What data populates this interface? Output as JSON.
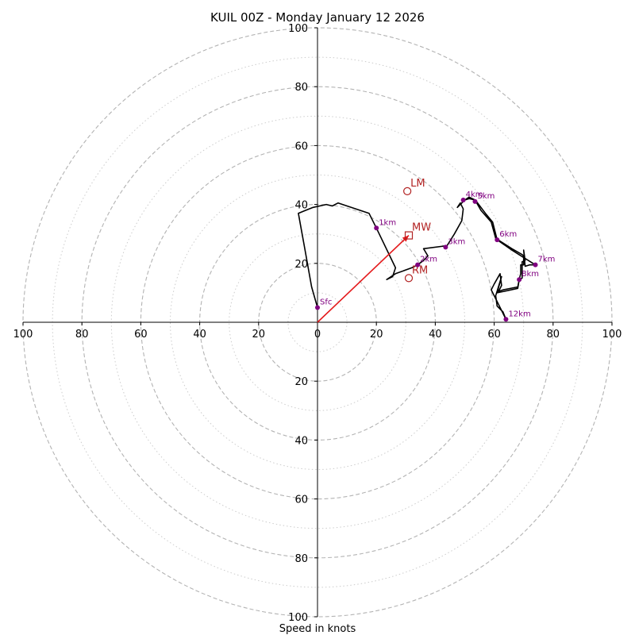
{
  "chart_data": {
    "type": "hodograph",
    "title": "KUIL 00Z - Monday January 12 2026",
    "xlabel": "Speed in knots",
    "units": "knots",
    "range": [
      -100,
      100
    ],
    "ring_ticks": [
      100,
      80,
      60,
      40,
      20,
      0,
      20,
      40,
      60,
      80,
      100
    ],
    "rings_major": [
      20,
      40,
      60,
      80,
      100
    ],
    "rings_minor": [
      10,
      30,
      50,
      70,
      90
    ],
    "grid": true,
    "colors": {
      "trace": "#000000",
      "height_marker": "#800080",
      "motion": "#b22222",
      "mean_wind_vector": "#e41a1c",
      "ring_major": "#b3b3b3",
      "ring_minor": "#cccccc",
      "axis": "#000000"
    },
    "trace": [
      [
        0.0,
        5.0
      ],
      [
        -2.0,
        12.0
      ],
      [
        -4.5,
        26.0
      ],
      [
        -6.5,
        37.0
      ],
      [
        -1.5,
        39.0
      ],
      [
        3.0,
        40.0
      ],
      [
        5.0,
        39.5
      ],
      [
        7.0,
        40.5
      ],
      [
        17.5,
        37.0
      ],
      [
        20.0,
        32.0
      ],
      [
        26.5,
        18.5
      ],
      [
        25.5,
        15.5
      ],
      [
        23.5,
        14.5
      ],
      [
        26.5,
        16.5
      ],
      [
        32.0,
        18.5
      ],
      [
        34.0,
        19.5
      ],
      [
        36.0,
        21.0
      ],
      [
        37.5,
        22.5
      ],
      [
        36.0,
        25.0
      ],
      [
        44.0,
        26.0
      ],
      [
        46.5,
        30.0
      ],
      [
        49.0,
        34.5
      ],
      [
        49.5,
        38.5
      ],
      [
        48.5,
        40.5
      ],
      [
        47.5,
        39.0
      ],
      [
        50.0,
        41.5
      ],
      [
        51.5,
        42.5
      ],
      [
        53.5,
        41.5
      ],
      [
        55.5,
        38.0
      ],
      [
        59.0,
        34.0
      ],
      [
        60.5,
        28.5
      ],
      [
        66.0,
        25.0
      ],
      [
        69.5,
        23.0
      ],
      [
        70.0,
        22.5
      ],
      [
        70.0,
        19.5
      ],
      [
        69.0,
        19.5
      ],
      [
        69.0,
        16.5
      ],
      [
        68.5,
        14.5
      ],
      [
        68.0,
        12.0
      ],
      [
        63.0,
        11.0
      ],
      [
        61.5,
        10.5
      ],
      [
        62.5,
        12.5
      ],
      [
        62.0,
        16.5
      ],
      [
        60.0,
        13.0
      ],
      [
        59.0,
        11.0
      ],
      [
        61.5,
        6.0
      ],
      [
        64.0,
        1.0
      ],
      [
        63.0,
        3.5
      ],
      [
        61.0,
        5.5
      ],
      [
        60.5,
        9.0
      ],
      [
        62.5,
        15.5
      ],
      [
        61.0,
        10.0
      ],
      [
        68.0,
        11.5
      ],
      [
        68.5,
        14.5
      ],
      [
        69.5,
        15.0
      ],
      [
        69.5,
        20.5
      ],
      [
        70.5,
        21.0
      ],
      [
        70.0,
        24.5
      ],
      [
        70.5,
        19.0
      ],
      [
        72.0,
        19.5
      ],
      [
        74.0,
        19.5
      ],
      [
        70.0,
        22.0
      ],
      [
        66.0,
        24.5
      ],
      [
        61.0,
        28.0
      ],
      [
        59.5,
        34.0
      ],
      [
        57.0,
        37.0
      ],
      [
        54.0,
        41.0
      ],
      [
        53.5,
        41.5
      ],
      [
        51.5,
        42.0
      ],
      [
        50.0,
        41.5
      ]
    ],
    "height_markers": [
      {
        "label": "Sfc",
        "u": 0.0,
        "v": 5.0
      },
      {
        "label": "1km",
        "u": 20.0,
        "v": 32.0
      },
      {
        "label": "2km",
        "u": 34.0,
        "v": 19.5
      },
      {
        "label": "3km",
        "u": 43.5,
        "v": 25.5
      },
      {
        "label": "4km",
        "u": 49.5,
        "v": 41.5
      },
      {
        "label": "5km",
        "u": 53.5,
        "v": 41.0
      },
      {
        "label": "6km",
        "u": 61.0,
        "v": 28.0
      },
      {
        "label": "7km",
        "u": 74.0,
        "v": 19.5
      },
      {
        "label": "8km",
        "u": 68.5,
        "v": 14.5
      },
      {
        "label": "12km",
        "u": 64.0,
        "v": 1.0
      }
    ],
    "storm_motions": [
      {
        "label": "LM",
        "u": 30.5,
        "v": 44.5,
        "marker": "circle"
      },
      {
        "label": "MW",
        "u": 31.0,
        "v": 29.5,
        "marker": "square"
      },
      {
        "label": "RM",
        "u": 31.0,
        "v": 15.0,
        "marker": "circle"
      }
    ],
    "mean_wind_vector": {
      "u": 31.0,
      "v": 29.5
    }
  }
}
